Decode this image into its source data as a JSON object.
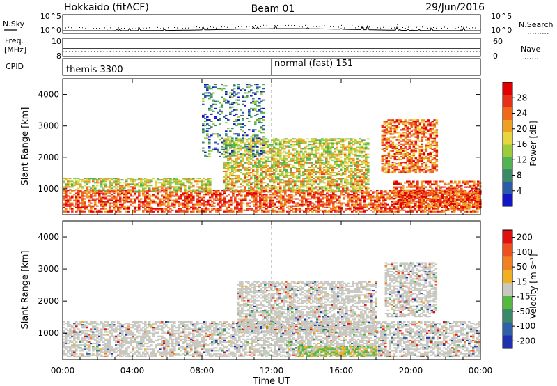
{
  "header": {
    "station": "Hokkaido (fitACF)",
    "beam": "Beam 01",
    "date": "29/Jun/2016"
  },
  "strips": {
    "nsky_label": "N.Sky",
    "nsearch_label": "N.Search",
    "freq_label": "Freq.",
    "freq_unit": "[MHz]",
    "nave_label": "Nave",
    "cpid_label": "CPID",
    "nsky_ticks": [
      "10^5",
      "10^0"
    ],
    "nsearch_ticks": [
      "10^5",
      "10^0"
    ],
    "freq_ticks": [
      "10",
      "8"
    ],
    "nave_ticks": [
      "60",
      "0"
    ],
    "cpid_segments": [
      {
        "label": "themis 3300",
        "start_hour": 0,
        "end_hour": 12
      },
      {
        "label": "normal (fast) 151",
        "start_hour": 12,
        "end_hour": 24
      }
    ]
  },
  "chart_data": [
    {
      "type": "heatmap",
      "name": "power",
      "ylabel": "Slant Range [km]",
      "ylim": [
        180,
        4500
      ],
      "yticks": [
        "1000",
        "2000",
        "3000",
        "4000"
      ],
      "colorbar_label": "Power [dB]",
      "colorbar_ticks": [
        "28",
        "24",
        "20",
        "16",
        "12",
        "8",
        "4"
      ],
      "colorbar_range": [
        0,
        32
      ],
      "colors": [
        "#1515c8",
        "#2b5ba8",
        "#3a8a6a",
        "#52b352",
        "#9ccc3a",
        "#e8d640",
        "#f0a020",
        "#f06818",
        "#e83018",
        "#e00000"
      ],
      "features": [
        {
          "t0": 0.0,
          "t1": 24.0,
          "r0": 250,
          "r1": 950,
          "level": "high"
        },
        {
          "t0": 0.0,
          "t1": 8.5,
          "r0": 900,
          "r1": 1350,
          "level": "mid"
        },
        {
          "t0": 9.2,
          "t1": 17.5,
          "r0": 900,
          "r1": 2600,
          "level": "mid"
        },
        {
          "t0": 18.3,
          "t1": 21.5,
          "r0": 1500,
          "r1": 3200,
          "level": "high-edge"
        },
        {
          "t0": 19.0,
          "t1": 24.0,
          "r0": 400,
          "r1": 1250,
          "level": "high"
        },
        {
          "t0": 8.0,
          "t1": 11.5,
          "r0": 2000,
          "r1": 4300,
          "level": "low"
        }
      ]
    },
    {
      "type": "heatmap",
      "name": "velocity",
      "ylabel": "Slant Range [km]",
      "ylim": [
        180,
        4500
      ],
      "yticks": [
        "1000",
        "2000",
        "3000",
        "4000"
      ],
      "colorbar_label": "Velocity [m s⁻¹]",
      "colorbar_ticks": [
        "200",
        "100",
        "50",
        "15",
        "-15",
        "-50",
        "-100",
        "-200"
      ],
      "colorbar_range": [
        -250,
        250
      ],
      "colors": [
        "#2030b0",
        "#3060a8",
        "#3a8a6a",
        "#55b840",
        "#c8c8c0",
        "#f0b020",
        "#f08020",
        "#ee5020",
        "#e01010"
      ],
      "features": [
        {
          "t0": 0.0,
          "t1": 24.0,
          "r0": 250,
          "r1": 1350,
          "level": "grey-mostly"
        },
        {
          "t0": 10.0,
          "t1": 18.0,
          "r0": 1000,
          "r1": 2600,
          "level": "grey-mostly"
        },
        {
          "t0": 18.5,
          "t1": 21.5,
          "r0": 1500,
          "r1": 3200,
          "level": "grey-mostly"
        },
        {
          "t0": 13.5,
          "t1": 18.0,
          "r0": 250,
          "r1": 600,
          "level": "green-orange"
        }
      ]
    }
  ],
  "time_axis": {
    "label": "Time UT",
    "ticks": [
      "00:00",
      "04:00",
      "08:00",
      "12:00",
      "16:00",
      "20:00",
      "00:00"
    ]
  }
}
